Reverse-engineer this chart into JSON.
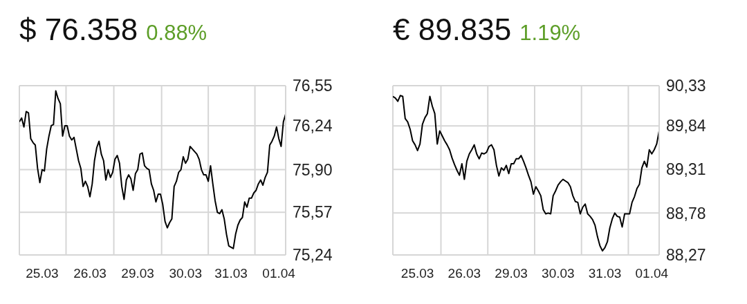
{
  "chart_data": [
    {
      "type": "line",
      "title": "$ 76.358",
      "subtitle": "0.88%",
      "grid": true,
      "ylim": [
        75.24,
        76.55
      ],
      "yticks": [
        {
          "value": 75.24,
          "label": "75,24"
        },
        {
          "value": 75.57,
          "label": "75,57"
        },
        {
          "value": 75.9,
          "label": "75,90"
        },
        {
          "value": 76.24,
          "label": "76,24"
        },
        {
          "value": 76.55,
          "label": "76,55"
        }
      ],
      "categories": [
        null,
        null,
        null,
        null,
        null,
        null,
        null,
        null,
        null,
        null,
        "25.03",
        null,
        null,
        null,
        null,
        null,
        null,
        null,
        null,
        null,
        null,
        null,
        null,
        null,
        null,
        null,
        null,
        null,
        null,
        null,
        null,
        "26.03",
        null,
        null,
        null,
        null,
        null,
        null,
        null,
        null,
        null,
        null,
        null,
        null,
        null,
        null,
        null,
        null,
        null,
        null,
        null,
        null,
        "29.03",
        null,
        null,
        null,
        null,
        null,
        null,
        null,
        null,
        null,
        null,
        null,
        null,
        null,
        null,
        null,
        null,
        null,
        null,
        null,
        null,
        "30.03",
        null,
        null,
        null,
        null,
        null,
        null,
        null,
        null,
        null,
        null,
        null,
        null,
        null,
        null,
        null,
        null,
        null,
        null,
        null,
        "31.03",
        null,
        null,
        null,
        null,
        null,
        null,
        null,
        null,
        null,
        null,
        null,
        null,
        null,
        null,
        null,
        null,
        null,
        null,
        null,
        null,
        "01.04",
        null,
        null,
        null
      ],
      "series": [
        {
          "color": "#000000",
          "values": [
            76.27,
            76.3,
            76.23,
            76.35,
            76.34,
            76.14,
            76.11,
            76.09,
            75.91,
            75.8,
            75.9,
            75.89,
            76.06,
            76.16,
            76.24,
            76.25,
            76.51,
            76.45,
            76.41,
            76.16,
            76.24,
            76.24,
            76.16,
            76.13,
            76.15,
            76.06,
            75.97,
            75.91,
            75.77,
            75.81,
            75.77,
            75.69,
            75.79,
            75.97,
            76.07,
            76.12,
            76.02,
            75.97,
            75.82,
            75.9,
            75.84,
            75.88,
            75.98,
            76.01,
            75.95,
            75.77,
            75.67,
            75.82,
            75.86,
            75.83,
            75.74,
            75.87,
            75.9,
            76.02,
            76.03,
            75.93,
            75.91,
            75.9,
            75.79,
            75.74,
            75.65,
            75.71,
            75.71,
            75.63,
            75.5,
            75.45,
            75.49,
            75.52,
            75.77,
            75.81,
            75.88,
            75.9,
            76,
            75.95,
            75.98,
            76.08,
            76.06,
            76.04,
            76.02,
            75.98,
            75.9,
            75.86,
            75.86,
            75.81,
            75.93,
            75.79,
            75.66,
            75.57,
            75.56,
            75.59,
            75.52,
            75.4,
            75.31,
            75.3,
            75.29,
            75.4,
            75.47,
            75.51,
            75.53,
            75.65,
            75.61,
            75.68,
            75.68,
            75.72,
            75.74,
            75.79,
            75.82,
            75.78,
            75.84,
            75.88,
            76.09,
            76.12,
            76.16,
            76.23,
            76.14,
            76.08,
            76.27,
            76.33
          ]
        }
      ]
    },
    {
      "type": "line",
      "title": "€ 89.835",
      "subtitle": "1.19%",
      "grid": true,
      "ylim": [
        88.27,
        90.33
      ],
      "yticks": [
        {
          "value": 88.27,
          "label": "88,27"
        },
        {
          "value": 88.78,
          "label": "88,78"
        },
        {
          "value": 89.31,
          "label": "89,31"
        },
        {
          "value": 89.84,
          "label": "89,84"
        },
        {
          "value": 90.33,
          "label": "90,33"
        }
      ],
      "categories": [
        null,
        null,
        null,
        null,
        null,
        null,
        null,
        null,
        null,
        null,
        "25.03",
        null,
        null,
        null,
        null,
        null,
        null,
        null,
        null,
        null,
        null,
        null,
        null,
        null,
        null,
        null,
        null,
        null,
        null,
        "26.03",
        null,
        null,
        null,
        null,
        null,
        null,
        null,
        null,
        null,
        null,
        null,
        null,
        null,
        null,
        null,
        null,
        null,
        null,
        "29.03",
        null,
        null,
        null,
        null,
        null,
        null,
        null,
        null,
        null,
        null,
        null,
        null,
        null,
        null,
        null,
        null,
        null,
        null,
        "30.03",
        null,
        null,
        null,
        null,
        null,
        null,
        null,
        null,
        null,
        null,
        null,
        null,
        null,
        null,
        null,
        null,
        null,
        null,
        "31.03",
        null,
        null,
        null,
        null,
        null,
        null,
        null,
        null,
        null,
        null,
        null,
        null,
        null,
        null,
        null,
        null,
        null,
        null,
        "01.04",
        null,
        null,
        null
      ],
      "series": [
        {
          "color": "#000000",
          "values": [
            90.2,
            90.18,
            90.14,
            90.21,
            90.2,
            89.93,
            89.89,
            89.8,
            89.66,
            89.61,
            89.54,
            89.62,
            89.86,
            89.94,
            89.99,
            90.2,
            90.08,
            89.99,
            89.62,
            89.78,
            89.72,
            89.66,
            89.61,
            89.55,
            89.45,
            89.37,
            89.3,
            89.24,
            89.38,
            89.19,
            89.41,
            89.5,
            89.55,
            89.61,
            89.5,
            89.44,
            89.51,
            89.5,
            89.52,
            89.59,
            89.61,
            89.55,
            89.36,
            89.23,
            89.33,
            89.3,
            89.36,
            89.26,
            89.38,
            89.38,
            89.44,
            89.44,
            89.48,
            89.41,
            89.33,
            89.24,
            89.16,
            89.01,
            89.1,
            89.05,
            88.99,
            88.82,
            88.77,
            88.78,
            88.77,
            88.99,
            89.05,
            89.12,
            89.16,
            89.19,
            89.17,
            89.15,
            89.1,
            88.99,
            88.92,
            88.91,
            88.77,
            88.85,
            88.89,
            88.77,
            88.74,
            88.7,
            88.63,
            88.49,
            88.38,
            88.32,
            88.36,
            88.43,
            88.6,
            88.71,
            88.78,
            88.74,
            88.73,
            88.61,
            88.77,
            88.77,
            88.77,
            88.91,
            88.98,
            89.08,
            89.13,
            89.33,
            89.41,
            89.34,
            89.55,
            89.5,
            89.55,
            89.62,
            89.78
          ]
        }
      ]
    }
  ]
}
